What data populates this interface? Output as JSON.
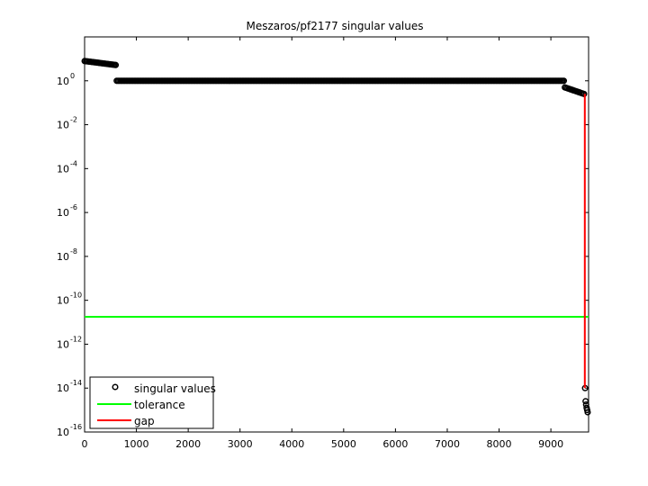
{
  "chart_data": {
    "type": "scatter",
    "title": "Meszaros/pf2177 singular values",
    "xlabel": "",
    "ylabel": "",
    "xlim": [
      0,
      9728
    ],
    "ylim_log10": [
      -16,
      2
    ],
    "yscale": "log",
    "x_ticks": [
      0,
      1000,
      2000,
      3000,
      4000,
      5000,
      6000,
      7000,
      8000,
      9000
    ],
    "x_tick_labels": [
      "0",
      "1000",
      "2000",
      "3000",
      "4000",
      "5000",
      "6000",
      "7000",
      "8000",
      "9000"
    ],
    "y_tick_exponents": [
      0,
      -2,
      -4,
      -6,
      -8,
      -10,
      -12,
      -14,
      -16
    ],
    "y_tick_base": "10",
    "y_tick_exp_labels": [
      "0",
      "-2",
      "-4",
      "-6",
      "-8",
      "-10",
      "-12",
      "-14",
      "-16"
    ],
    "grid": false,
    "legend_position": "bottom-left",
    "legend": [
      "singular values",
      "tolerance",
      "gap"
    ],
    "series": [
      {
        "name": "singular values",
        "style": "markers",
        "color": "#000000",
        "segments": [
          {
            "x": [
              1,
              600
            ],
            "log10_y": [
              0.9,
              0.72
            ]
          },
          {
            "x": [
              620,
              9250
            ],
            "log10_y": [
              0.0,
              0.0
            ]
          },
          {
            "x": [
              9270,
              9640
            ],
            "log10_y": [
              -0.3,
              -0.6
            ]
          }
        ],
        "points": [
          {
            "x": 9660,
            "log10_y": -14.0
          },
          {
            "x": 9670,
            "log10_y": -14.6
          },
          {
            "x": 9680,
            "log10_y": -14.75
          },
          {
            "x": 9690,
            "log10_y": -14.9
          },
          {
            "x": 9700,
            "log10_y": -15.0
          },
          {
            "x": 9710,
            "log10_y": -15.1
          }
        ]
      },
      {
        "name": "tolerance",
        "style": "line",
        "color": "#00ff00",
        "x": [
          0,
          9728
        ],
        "log10_y": [
          -10.75,
          -10.75
        ]
      },
      {
        "name": "gap",
        "style": "line",
        "color": "#ff0000",
        "x": [
          9655,
          9655
        ],
        "log10_y": [
          -0.6,
          -14.0
        ]
      }
    ]
  }
}
